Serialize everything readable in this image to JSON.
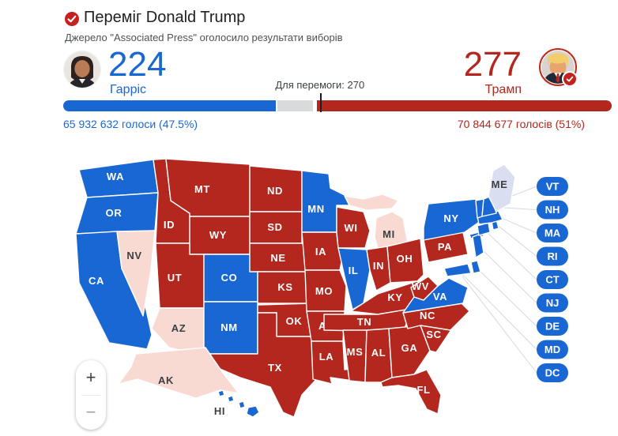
{
  "header": {
    "title": "Переміг Donald Trump",
    "source_line": "Джерело \"Associated Press\" оголосило результати виборів"
  },
  "scoreboard": {
    "harris": {
      "electoral": "224",
      "name": "Гарріс",
      "votes_line": "65 932 632 голоси (47.5%)"
    },
    "trump": {
      "electoral": "277",
      "name": "Трамп",
      "votes_line": "70 844 677 голосів (51%)"
    },
    "threshold_label": "Для перемоги: 270"
  },
  "zoom_control": {
    "zoom_in": "+",
    "zoom_out": "−"
  },
  "colors": {
    "dem": "#1967d2",
    "rep": "#b3271e",
    "lean_rep": "#f8dad3",
    "lean_dem": "#d9def0",
    "map_label_light": "#ffffff",
    "map_label_dark": "#3c4043",
    "undecided_bar": "#d9dadc",
    "header_badge": "#c5221f",
    "dem_text": "#1967d2",
    "rep_text": "#b3271e"
  },
  "map": {
    "states": [
      {
        "abbr": "WA",
        "party": "dem"
      },
      {
        "abbr": "OR",
        "party": "dem"
      },
      {
        "abbr": "CA",
        "party": "dem"
      },
      {
        "abbr": "NV",
        "party": "lean_rep"
      },
      {
        "abbr": "ID",
        "party": "rep"
      },
      {
        "abbr": "MT",
        "party": "rep"
      },
      {
        "abbr": "WY",
        "party": "rep"
      },
      {
        "abbr": "UT",
        "party": "rep"
      },
      {
        "abbr": "CO",
        "party": "dem"
      },
      {
        "abbr": "AZ",
        "party": "lean_rep"
      },
      {
        "abbr": "NM",
        "party": "dem"
      },
      {
        "abbr": "ND",
        "party": "rep"
      },
      {
        "abbr": "SD",
        "party": "rep"
      },
      {
        "abbr": "NE",
        "party": "rep"
      },
      {
        "abbr": "KS",
        "party": "rep"
      },
      {
        "abbr": "OK",
        "party": "rep"
      },
      {
        "abbr": "TX",
        "party": "rep"
      },
      {
        "abbr": "MN",
        "party": "dem"
      },
      {
        "abbr": "IA",
        "party": "rep"
      },
      {
        "abbr": "MO",
        "party": "rep"
      },
      {
        "abbr": "AR",
        "party": "rep"
      },
      {
        "abbr": "LA",
        "party": "rep"
      },
      {
        "abbr": "WI",
        "party": "rep"
      },
      {
        "abbr": "IL",
        "party": "dem"
      },
      {
        "abbr": "MI",
        "party": "lean_rep"
      },
      {
        "abbr": "IN",
        "party": "rep"
      },
      {
        "abbr": "OH",
        "party": "rep"
      },
      {
        "abbr": "KY",
        "party": "rep"
      },
      {
        "abbr": "TN",
        "party": "rep"
      },
      {
        "abbr": "MS",
        "party": "rep"
      },
      {
        "abbr": "AL",
        "party": "rep"
      },
      {
        "abbr": "GA",
        "party": "rep"
      },
      {
        "abbr": "FL",
        "party": "rep"
      },
      {
        "abbr": "SC",
        "party": "rep"
      },
      {
        "abbr": "NC",
        "party": "rep"
      },
      {
        "abbr": "VA",
        "party": "dem"
      },
      {
        "abbr": "WV",
        "party": "rep"
      },
      {
        "abbr": "PA",
        "party": "rep"
      },
      {
        "abbr": "NY",
        "party": "dem"
      },
      {
        "abbr": "NJ",
        "party": "dem"
      },
      {
        "abbr": "DE",
        "party": "dem"
      },
      {
        "abbr": "MD",
        "party": "dem"
      },
      {
        "abbr": "CT",
        "party": "dem"
      },
      {
        "abbr": "RI",
        "party": "dem"
      },
      {
        "abbr": "MA",
        "party": "dem"
      },
      {
        "abbr": "VT",
        "party": "dem"
      },
      {
        "abbr": "NH",
        "party": "dem"
      },
      {
        "abbr": "ME",
        "party": "lean_dem"
      },
      {
        "abbr": "AK",
        "party": "lean_rep"
      },
      {
        "abbr": "HI",
        "party": "dem"
      }
    ],
    "pills": [
      {
        "label": "VT",
        "party": "dem"
      },
      {
        "label": "NH",
        "party": "dem"
      },
      {
        "label": "MA",
        "party": "dem"
      },
      {
        "label": "RI",
        "party": "dem"
      },
      {
        "label": "CT",
        "party": "dem"
      },
      {
        "label": "NJ",
        "party": "dem"
      },
      {
        "label": "DE",
        "party": "dem"
      },
      {
        "label": "MD",
        "party": "dem"
      },
      {
        "label": "DC",
        "party": "dem"
      }
    ]
  }
}
